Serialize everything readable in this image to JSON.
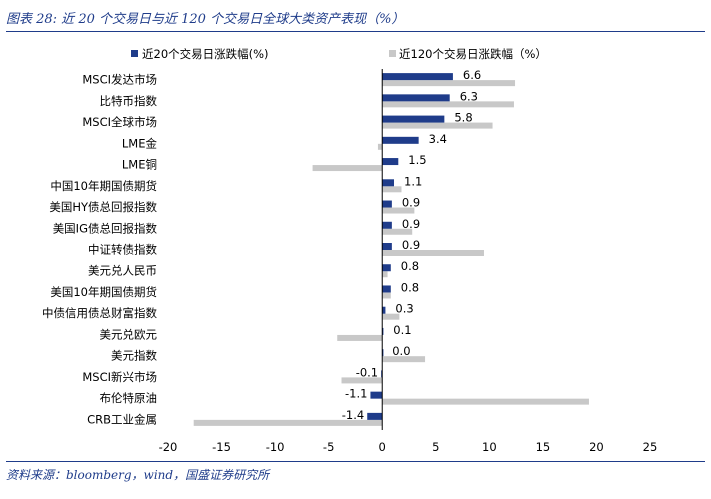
{
  "header": {
    "title": "图表 28:  近 20 个交易日与近 120 个交易日全球大类资产表现（%）"
  },
  "footer": {
    "source": "资料来源：bloomberg，wind，国盛证券研究所"
  },
  "colors": {
    "series_20d": "#1f3c8a",
    "series_120d": "#c8c8c8",
    "title": "#1f3c8a"
  },
  "chart_data": {
    "type": "bar",
    "orientation": "horizontal",
    "categories": [
      "MSCI发达市场",
      "比特币指数",
      "MSCI全球市场",
      "LME金",
      "LME铜",
      "中国10年期国债期货",
      "美国HY债总回报指数",
      "美国IG债总回报指数",
      "中证转债指数",
      "美元兑人民币",
      "美国10年期国债期货",
      "中债信用债总财富指数",
      "美元兑欧元",
      "美元指数",
      "MSCI新兴市场",
      "布伦特原油",
      "CRB工业金属"
    ],
    "series": [
      {
        "name": "近20个交易日涨跌幅(%)",
        "values": [
          6.6,
          6.3,
          5.8,
          3.4,
          1.5,
          1.1,
          0.9,
          0.9,
          0.9,
          0.8,
          0.8,
          0.3,
          0.1,
          0.0,
          -0.1,
          -1.1,
          -1.4
        ],
        "labels": [
          "6.6",
          "6.3",
          "5.8",
          "3.4",
          "1.5",
          "1.1",
          "0.9",
          "0.9",
          "0.9",
          "0.8",
          "0.8",
          "0.3",
          "0.1",
          "0.0",
          "-0.1",
          "-1.1",
          "-1.4"
        ]
      },
      {
        "name": "近120个交易日涨跌幅（%）",
        "values": [
          12.4,
          12.3,
          10.3,
          -0.4,
          -6.5,
          1.8,
          3.0,
          2.8,
          9.5,
          0.5,
          0.8,
          1.6,
          -4.2,
          4.0,
          -3.8,
          19.3,
          -17.6
        ]
      }
    ],
    "xlim": [
      -20,
      25
    ],
    "xticks": [
      "-20",
      "-15",
      "-10",
      "-5",
      "0",
      "5",
      "10",
      "15",
      "20",
      "25"
    ],
    "legend": "top",
    "grid": false
  }
}
